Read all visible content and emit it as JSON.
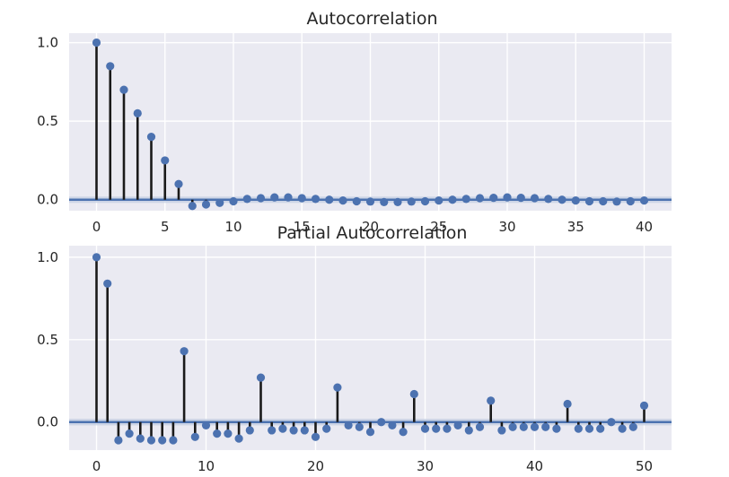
{
  "style": {
    "panel_bg": "#eaeaf2",
    "grid": "#ffffff",
    "marker": "#4c72b0",
    "stem": "#1a1a1a",
    "zero_line": "#4c72b0",
    "ci_band": "#c5cfe2"
  },
  "chart_data": [
    {
      "type": "stem",
      "title": "Autocorrelation",
      "xlabel": "",
      "ylabel": "",
      "xlim": [
        -2,
        42
      ],
      "ylim": [
        -0.07,
        1.06
      ],
      "grid": true,
      "legend": "none",
      "xticks": [
        0,
        5,
        10,
        15,
        20,
        25,
        30,
        35,
        40
      ],
      "xtick_labels": [
        "0",
        "5",
        "10",
        "15",
        "20",
        "25",
        "30",
        "35",
        "40"
      ],
      "yticks": [
        0.0,
        0.5,
        1.0
      ],
      "ytick_labels": [
        "0.0",
        "0.5",
        "1.0"
      ],
      "confidence_band": [
        -0.02,
        0.02
      ],
      "lags": [
        0,
        1,
        2,
        3,
        4,
        5,
        6,
        7,
        8,
        9,
        10,
        11,
        12,
        13,
        14,
        15,
        16,
        17,
        18,
        19,
        20,
        21,
        22,
        23,
        24,
        25,
        26,
        27,
        28,
        29,
        30,
        31,
        32,
        33,
        34,
        35,
        36,
        37,
        38,
        39,
        40
      ],
      "values": [
        1.0,
        0.85,
        0.7,
        0.55,
        0.4,
        0.25,
        0.1,
        -0.04,
        -0.03,
        -0.02,
        -0.01,
        0.005,
        0.01,
        0.015,
        0.015,
        0.01,
        0.005,
        0.0,
        -0.005,
        -0.01,
        -0.012,
        -0.015,
        -0.015,
        -0.012,
        -0.01,
        -0.005,
        0.0,
        0.005,
        0.01,
        0.012,
        0.015,
        0.012,
        0.01,
        0.005,
        0.0,
        -0.005,
        -0.01,
        -0.01,
        -0.012,
        -0.01,
        -0.005
      ]
    },
    {
      "type": "stem",
      "title": "Partial Autocorrelation",
      "xlabel": "",
      "ylabel": "",
      "xlim": [
        -2.5,
        52.5
      ],
      "ylim": [
        -0.17,
        1.07
      ],
      "grid": true,
      "legend": "none",
      "xticks": [
        0,
        10,
        20,
        30,
        40,
        50
      ],
      "xtick_labels": [
        "0",
        "10",
        "20",
        "30",
        "40",
        "50"
      ],
      "yticks": [
        0.0,
        0.5,
        1.0
      ],
      "ytick_labels": [
        "0.0",
        "0.5",
        "1.0"
      ],
      "confidence_band": [
        -0.02,
        0.02
      ],
      "lags": [
        0,
        1,
        2,
        3,
        4,
        5,
        6,
        7,
        8,
        9,
        10,
        11,
        12,
        13,
        14,
        15,
        16,
        17,
        18,
        19,
        20,
        21,
        22,
        23,
        24,
        25,
        26,
        27,
        28,
        29,
        30,
        31,
        32,
        33,
        34,
        35,
        36,
        37,
        38,
        39,
        40,
        41,
        42,
        43,
        44,
        45,
        46,
        47,
        48,
        49,
        50
      ],
      "values": [
        1.0,
        0.84,
        -0.11,
        -0.07,
        -0.1,
        -0.11,
        -0.11,
        -0.11,
        0.43,
        -0.09,
        -0.02,
        -0.07,
        -0.07,
        -0.1,
        -0.05,
        0.27,
        -0.05,
        -0.04,
        -0.05,
        -0.05,
        -0.09,
        -0.04,
        0.21,
        -0.02,
        -0.03,
        -0.06,
        0.0,
        -0.02,
        -0.06,
        0.17,
        -0.04,
        -0.04,
        -0.04,
        -0.02,
        -0.05,
        -0.03,
        0.13,
        -0.05,
        -0.03,
        -0.03,
        -0.03,
        -0.03,
        -0.04,
        0.11,
        -0.04,
        -0.04,
        -0.04,
        0.0,
        -0.04,
        -0.03,
        0.1
      ]
    }
  ]
}
